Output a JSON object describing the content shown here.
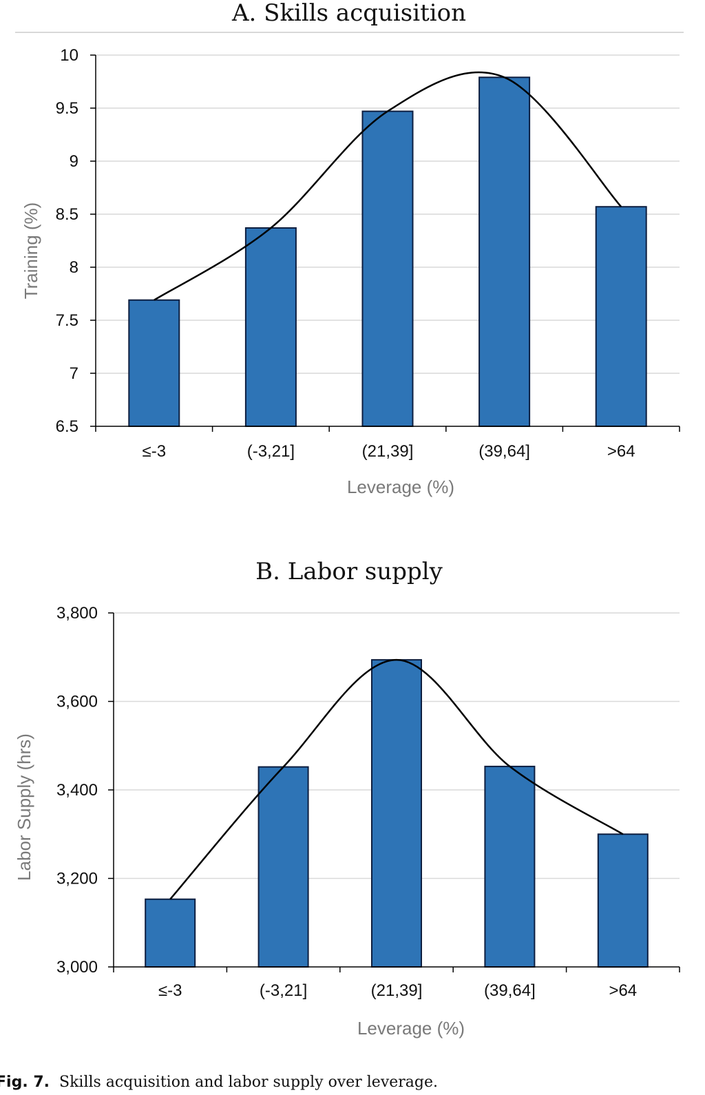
{
  "figure": {
    "caption_label": "Fig. 7.",
    "caption_text": "Skills acquisition and labor supply over leverage."
  },
  "bar_color": "#2e74b6",
  "chart_data": [
    {
      "type": "bar",
      "title": "A. Skills acquisition",
      "xlabel": "Leverage (%)",
      "ylabel": "Training (%)",
      "categories": [
        "≤-3",
        "(-3,21]",
        "(21,39]",
        "(39,64]",
        ">64"
      ],
      "values": [
        7.69,
        8.37,
        9.47,
        9.79,
        8.57
      ],
      "ylim": [
        6.5,
        10
      ],
      "yticks": [
        6.5,
        7,
        7.5,
        8,
        8.5,
        9,
        9.5,
        10
      ],
      "ytick_labels": [
        "6.5",
        "7",
        "7.5",
        "8",
        "8.5",
        "9",
        "9.5",
        "10"
      ],
      "grid": true,
      "trend_line": "smoothed line through bar tops"
    },
    {
      "type": "bar",
      "title": "B. Labor supply",
      "xlabel": "Leverage (%)",
      "ylabel": "Labor Supply (hrs)",
      "categories": [
        "≤-3",
        "(-3,21]",
        "(21,39]",
        "(39,64]",
        ">64"
      ],
      "values": [
        3153,
        3452,
        3694,
        3453,
        3300
      ],
      "ylim": [
        3000,
        3800
      ],
      "yticks": [
        3000,
        3200,
        3400,
        3600,
        3800
      ],
      "ytick_labels": [
        "3,000",
        "3,200",
        "3,400",
        "3,600",
        "3,800"
      ],
      "grid": true,
      "trend_line": "smoothed line through bar tops"
    }
  ]
}
